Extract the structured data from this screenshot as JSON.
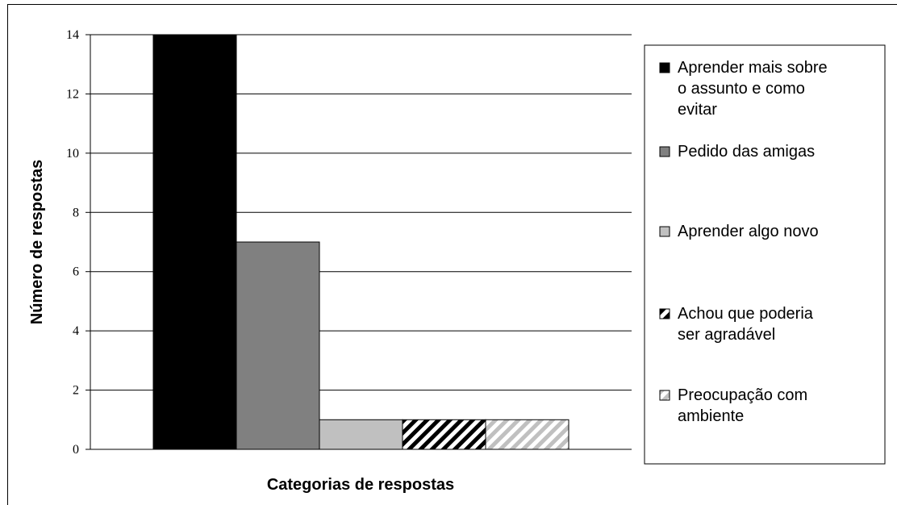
{
  "chart_data": {
    "type": "bar",
    "xlabel": "Categorias de respostas",
    "ylabel": "Número de respostas",
    "ylim": [
      0,
      14
    ],
    "yticks": [
      0,
      2,
      4,
      6,
      8,
      10,
      12,
      14
    ],
    "grid": true,
    "legend_position": "right",
    "series": [
      {
        "name": "Aprender mais sobre o assunto e como evitar",
        "value": 14,
        "fill": "#000000",
        "pattern": "solid"
      },
      {
        "name": "Pedido das amigas",
        "value": 7,
        "fill": "#808080",
        "pattern": "solid"
      },
      {
        "name": "Aprender algo novo",
        "value": 1,
        "fill": "#c0c0c0",
        "pattern": "solid"
      },
      {
        "name": "Achou que poderia ser agradável",
        "value": 1,
        "fill": "#000000",
        "pattern": "diagonal-stripes-dark"
      },
      {
        "name": "Preocupação com ambiente",
        "value": 1,
        "fill": "#c0c0c0",
        "pattern": "diagonal-stripes-light"
      }
    ],
    "legend_lines": [
      [
        "Aprender mais sobre",
        "o assunto e como",
        "evitar"
      ],
      [
        "Pedido das amigas"
      ],
      [
        "Aprender algo novo"
      ],
      [
        "Achou que poderia",
        "ser agradável"
      ],
      [
        "Preocupação com",
        "ambiente"
      ]
    ]
  }
}
